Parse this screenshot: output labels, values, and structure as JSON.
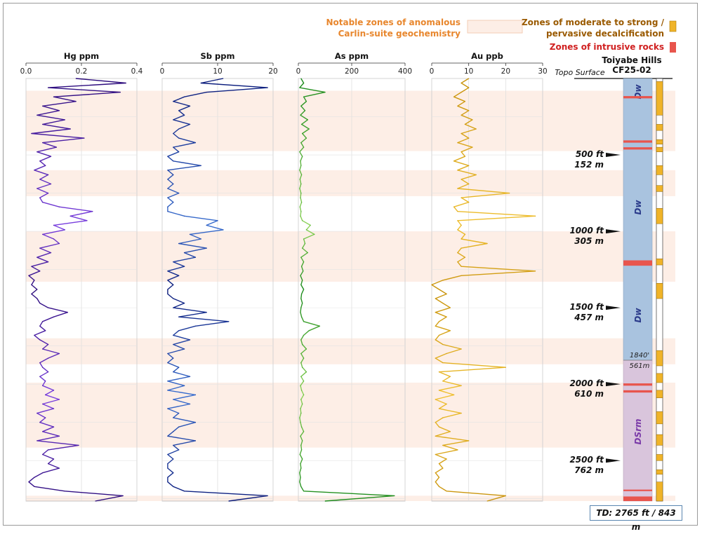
{
  "legend": {
    "anomalous_label_1": "Notable zones of anomalous",
    "anomalous_label_2": "Carlin-suite geochemistry",
    "decalc_label_1": "Zones of moderate to strong /",
    "decalc_label_2": "pervasive decalcification",
    "intrusive_label": "Zones of intrusive rocks",
    "colors": {
      "anomalous_fill": "#fdeee6",
      "anomalous_text": "#e8872e",
      "decalc_fill": "#f0b429",
      "decalc_text": "#9a5a00",
      "intrusive_fill": "#e8554d",
      "intrusive_text": "#d02020"
    }
  },
  "well": {
    "title_1": "Toiyabe Hills",
    "title_2": "CF25-02",
    "topo_label": "Topo Surface",
    "td_label": "TD: 2765 ft / 843 m",
    "contact_ft_label": "1840'",
    "contact_m_label": "561m",
    "unit_labels": [
      "Dw",
      "Dw",
      "Dw",
      "DSrm"
    ],
    "depth_marks": [
      {
        "ft": "500 ft",
        "m": "152 m"
      },
      {
        "ft": "1000 ft",
        "m": "305 m"
      },
      {
        "ft": "1500 ft",
        "m": "457 m"
      },
      {
        "ft": "2000 ft",
        "m": "610 m"
      },
      {
        "ft": "2500 ft",
        "m": "762 m"
      }
    ]
  },
  "chart_data": {
    "type": "line",
    "depth_axis": {
      "units": "ft",
      "range": [
        0,
        2765
      ],
      "orientation": "downward"
    },
    "anomalous_zones_ft": [
      [
        80,
        475
      ],
      [
        600,
        770
      ],
      [
        1000,
        1330
      ],
      [
        1700,
        1870
      ],
      [
        1990,
        2415
      ],
      [
        2730,
        2765
      ]
    ],
    "decalcification_zones_ft": [
      [
        20,
        240
      ],
      [
        300,
        340
      ],
      [
        400,
        430
      ],
      [
        450,
        480
      ],
      [
        570,
        630
      ],
      [
        700,
        740
      ],
      [
        850,
        950
      ],
      [
        1180,
        1220
      ],
      [
        1340,
        1440
      ],
      [
        1780,
        1880
      ],
      [
        1930,
        1990
      ],
      [
        2040,
        2090
      ],
      [
        2180,
        2260
      ],
      [
        2330,
        2400
      ],
      [
        2460,
        2500
      ],
      [
        2560,
        2590
      ],
      [
        2640,
        2765
      ]
    ],
    "intrusive_zones_ft": [
      [
        115,
        130
      ],
      [
        405,
        420
      ],
      [
        450,
        465
      ],
      [
        1190,
        1225
      ],
      [
        1995,
        2010
      ],
      [
        2040,
        2055
      ],
      [
        2690,
        2700
      ],
      [
        2735,
        2765
      ]
    ],
    "series": [
      {
        "name": "Hg ppm",
        "xlabel": "Hg ppm",
        "xlim": [
          0,
          0.4
        ],
        "xticks": [
          0,
          0.2,
          0.4
        ],
        "xticklabels": [
          "0.0",
          "0.2",
          "0.4"
        ],
        "gradient": [
          "#7a3fe0",
          "#2a0a7a"
        ],
        "depth_ft": [
          0,
          30,
          60,
          90,
          120,
          150,
          180,
          210,
          240,
          270,
          300,
          330,
          360,
          390,
          420,
          450,
          480,
          510,
          540,
          570,
          600,
          630,
          660,
          690,
          720,
          750,
          780,
          810,
          840,
          870,
          900,
          930,
          960,
          990,
          1020,
          1050,
          1080,
          1110,
          1140,
          1170,
          1200,
          1230,
          1260,
          1290,
          1320,
          1350,
          1380,
          1410,
          1440,
          1470,
          1500,
          1530,
          1560,
          1590,
          1620,
          1650,
          1680,
          1710,
          1740,
          1770,
          1800,
          1830,
          1860,
          1890,
          1920,
          1950,
          1980,
          2010,
          2040,
          2070,
          2100,
          2130,
          2160,
          2190,
          2220,
          2250,
          2280,
          2310,
          2340,
          2370,
          2400,
          2430,
          2460,
          2490,
          2520,
          2550,
          2580,
          2610,
          2640,
          2670,
          2700,
          2730,
          2765
        ],
        "values": [
          0.18,
          0.36,
          0.08,
          0.34,
          0.1,
          0.18,
          0.06,
          0.12,
          0.04,
          0.14,
          0.06,
          0.16,
          0.02,
          0.21,
          0.06,
          0.11,
          0.04,
          0.09,
          0.05,
          0.07,
          0.03,
          0.08,
          0.05,
          0.09,
          0.04,
          0.08,
          0.05,
          0.06,
          0.12,
          0.24,
          0.16,
          0.22,
          0.1,
          0.14,
          0.06,
          0.1,
          0.12,
          0.05,
          0.09,
          0.04,
          0.08,
          0.02,
          0.05,
          0.01,
          0.03,
          0.02,
          0.04,
          0.02,
          0.04,
          0.05,
          0.08,
          0.15,
          0.1,
          0.06,
          0.05,
          0.07,
          0.03,
          0.05,
          0.08,
          0.06,
          0.12,
          0.08,
          0.05,
          0.06,
          0.08,
          0.05,
          0.07,
          0.06,
          0.1,
          0.07,
          0.12,
          0.06,
          0.1,
          0.04,
          0.07,
          0.05,
          0.1,
          0.06,
          0.12,
          0.04,
          0.19,
          0.08,
          0.06,
          0.1,
          0.08,
          0.12,
          0.06,
          0.03,
          0.01,
          0.03,
          0.14,
          0.35,
          0.25
        ]
      },
      {
        "name": "Sb ppm",
        "xlabel": "Sb ppm",
        "xlim": [
          0,
          20
        ],
        "xticks": [
          0,
          10,
          20
        ],
        "xticklabels": [
          "0",
          "10",
          "20"
        ],
        "gradient": [
          "#3a6fd0",
          "#0a1a7a"
        ],
        "depth_ft": [
          0,
          30,
          60,
          90,
          120,
          150,
          180,
          210,
          240,
          270,
          300,
          330,
          360,
          390,
          420,
          450,
          480,
          510,
          540,
          570,
          600,
          630,
          660,
          690,
          720,
          750,
          780,
          810,
          840,
          870,
          900,
          930,
          960,
          990,
          1020,
          1050,
          1080,
          1110,
          1140,
          1170,
          1200,
          1230,
          1260,
          1290,
          1320,
          1350,
          1380,
          1410,
          1440,
          1470,
          1500,
          1530,
          1560,
          1590,
          1620,
          1650,
          1680,
          1710,
          1740,
          1770,
          1800,
          1830,
          1860,
          1890,
          1920,
          1950,
          1980,
          2010,
          2040,
          2070,
          2100,
          2130,
          2160,
          2190,
          2220,
          2250,
          2280,
          2310,
          2340,
          2370,
          2400,
          2430,
          2460,
          2490,
          2520,
          2550,
          2580,
          2610,
          2640,
          2670,
          2700,
          2730,
          2765
        ],
        "values": [
          11,
          7,
          19,
          8,
          4,
          2,
          5,
          3,
          4,
          2,
          5,
          3,
          2,
          3,
          6,
          2,
          3,
          1,
          2,
          7,
          1,
          2,
          1,
          2,
          1,
          3,
          1,
          2,
          1,
          1,
          4,
          10,
          8,
          11,
          5,
          7,
          3,
          8,
          4,
          6,
          2,
          4,
          1,
          3,
          1,
          2,
          1,
          1,
          2,
          4,
          2,
          8,
          3,
          12,
          6,
          3,
          2,
          5,
          2,
          4,
          1,
          2,
          1,
          3,
          2,
          5,
          1,
          4,
          1,
          6,
          2,
          5,
          1,
          3,
          2,
          6,
          3,
          2,
          1,
          6,
          2,
          3,
          1,
          2,
          1,
          1,
          2,
          1,
          1,
          2,
          4,
          19,
          12
        ]
      },
      {
        "name": "As ppm",
        "xlabel": "As ppm",
        "xlim": [
          0,
          400
        ],
        "xticks": [
          0,
          200,
          400
        ],
        "xticklabels": [
          "0",
          "200",
          "400"
        ],
        "gradient": [
          "#8fd45a",
          "#1a8a1a"
        ],
        "depth_ft": [
          0,
          30,
          60,
          90,
          120,
          150,
          180,
          210,
          240,
          270,
          300,
          330,
          360,
          390,
          420,
          450,
          480,
          510,
          540,
          570,
          600,
          630,
          660,
          690,
          720,
          750,
          780,
          810,
          840,
          870,
          900,
          930,
          960,
          990,
          1020,
          1050,
          1080,
          1110,
          1140,
          1170,
          1200,
          1230,
          1260,
          1290,
          1320,
          1350,
          1380,
          1410,
          1440,
          1470,
          1500,
          1530,
          1560,
          1590,
          1620,
          1650,
          1680,
          1710,
          1740,
          1770,
          1800,
          1830,
          1860,
          1890,
          1920,
          1950,
          1980,
          2010,
          2040,
          2070,
          2100,
          2130,
          2160,
          2190,
          2220,
          2250,
          2280,
          2310,
          2340,
          2370,
          2400,
          2430,
          2460,
          2490,
          2520,
          2550,
          2580,
          2610,
          2640,
          2670,
          2700,
          2730,
          2765
        ],
        "values": [
          10,
          20,
          5,
          100,
          20,
          30,
          10,
          25,
          8,
          35,
          12,
          40,
          15,
          30,
          10,
          20,
          5,
          15,
          8,
          10,
          5,
          12,
          6,
          10,
          5,
          10,
          8,
          12,
          6,
          10,
          8,
          15,
          45,
          30,
          60,
          20,
          25,
          15,
          35,
          10,
          20,
          12,
          18,
          8,
          15,
          10,
          20,
          12,
          10,
          15,
          10,
          8,
          12,
          20,
          80,
          40,
          20,
          10,
          15,
          30,
          10,
          20,
          10,
          15,
          30,
          10,
          20,
          8,
          12,
          20,
          10,
          15,
          8,
          10,
          5,
          8,
          12,
          20,
          8,
          15,
          10,
          12,
          6,
          15,
          8,
          10,
          5,
          8,
          5,
          10,
          20,
          360,
          100
        ]
      },
      {
        "name": "Au ppb",
        "xlabel": "Au ppb",
        "xlim": [
          0,
          30
        ],
        "xticks": [
          0,
          10,
          20,
          30
        ],
        "xticklabels": [
          "0",
          "10",
          "20",
          "30"
        ],
        "gradient": [
          "#f0c030",
          "#c8920a"
        ],
        "depth_ft": [
          0,
          30,
          60,
          90,
          120,
          150,
          180,
          210,
          240,
          270,
          300,
          330,
          360,
          390,
          420,
          450,
          480,
          510,
          540,
          570,
          600,
          630,
          660,
          690,
          720,
          750,
          780,
          810,
          840,
          870,
          900,
          930,
          960,
          990,
          1020,
          1050,
          1080,
          1110,
          1140,
          1170,
          1200,
          1230,
          1260,
          1290,
          1320,
          1350,
          1380,
          1410,
          1440,
          1470,
          1500,
          1530,
          1560,
          1590,
          1620,
          1650,
          1680,
          1710,
          1740,
          1770,
          1800,
          1830,
          1860,
          1890,
          1920,
          1950,
          1980,
          2010,
          2040,
          2070,
          2100,
          2130,
          2160,
          2190,
          2220,
          2250,
          2280,
          2310,
          2340,
          2370,
          2400,
          2430,
          2460,
          2490,
          2520,
          2550,
          2580,
          2610,
          2640,
          2670,
          2700,
          2730,
          2765
        ],
        "values": [
          10,
          8,
          10,
          8,
          6,
          9,
          7,
          10,
          8,
          11,
          9,
          12,
          8,
          10,
          7,
          11,
          8,
          9,
          6,
          10,
          7,
          12,
          8,
          10,
          7,
          21,
          8,
          10,
          6,
          7,
          28,
          7,
          8,
          7,
          9,
          8,
          15,
          8,
          7,
          9,
          7,
          8,
          28,
          8,
          3,
          0,
          2,
          4,
          1,
          3,
          5,
          1,
          4,
          2,
          1,
          5,
          2,
          1,
          3,
          8,
          4,
          1,
          3,
          20,
          2,
          5,
          3,
          8,
          2,
          6,
          1,
          4,
          2,
          8,
          3,
          1,
          2,
          5,
          1,
          10,
          3,
          7,
          1,
          4,
          2,
          3,
          1,
          2,
          1,
          2,
          4,
          20,
          15
        ]
      }
    ]
  }
}
